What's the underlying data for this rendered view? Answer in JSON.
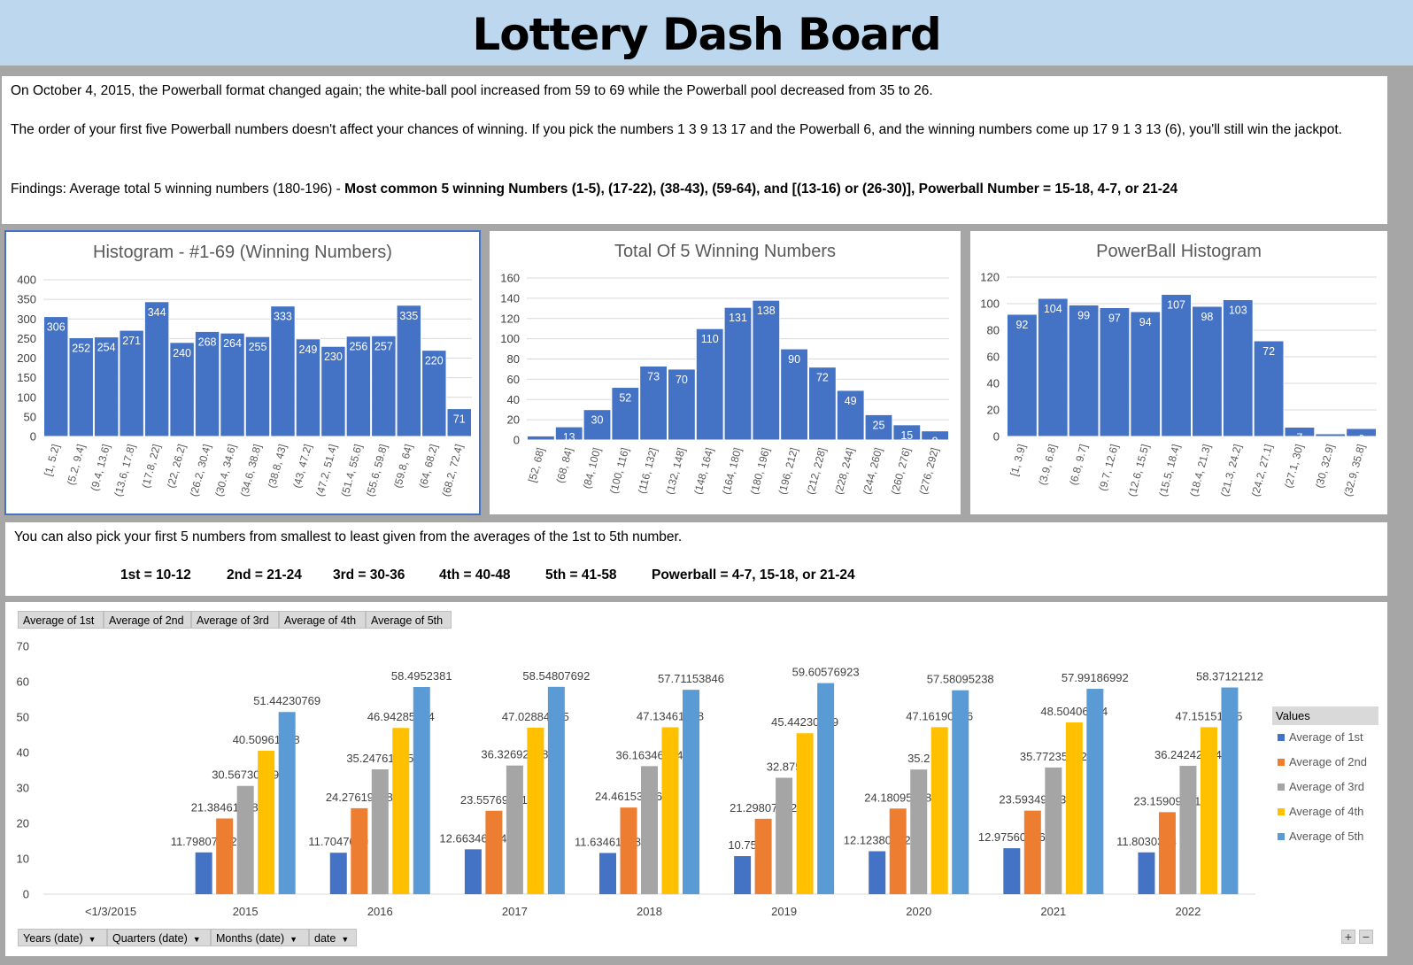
{
  "title": "Lottery Dash Board",
  "info": {
    "p1": "On October 4, 2015, the Powerball format changed again; the white-ball pool increased from 59 to 69 while the Powerball pool decreased from 35 to 26.",
    "p2": "The order of your first five Powerball numbers doesn't affect your chances of winning. If you pick the numbers 1 3 9 13 17 and the Powerball 6, and the winning numbers come up 17 9 1 3 13 (6), you'll still win the jackpot.",
    "p3_plain": "Findings: Average total 5 winning numbers (180-196) - ",
    "p3_bold": "Most common 5 winning Numbers (1-5), (17-22), (38-43), (59-64), and [(13-16) or (26-30)], Powerball Number = 15-18, 4-7, or 21-24"
  },
  "picks": {
    "intro": "You can also pick your first 5 numbers from smallest to least given from the averages of the 1st to 5th number.",
    "items": [
      "1st = 10-12",
      "2nd = 21-24",
      "3rd = 30-36",
      "4th = 40-48",
      "5th = 41-58",
      "Powerball = 4-7, 15-18, or 21-24"
    ]
  },
  "pivot": {
    "field_buttons": [
      "Average of 1st",
      "Average of 2nd",
      "Average of 3rd",
      "Average of 4th",
      "Average of 5th"
    ],
    "axis_buttons": [
      "Years (date)",
      "Quarters (date)",
      "Months (date)",
      "date"
    ],
    "legend_title": "Values",
    "zoom_in": "+",
    "zoom_out": "−"
  },
  "colors": {
    "bar": "#4472c4",
    "series": [
      "#4472c4",
      "#ed7d31",
      "#a5a5a5",
      "#ffc000",
      "#5b9bd5"
    ]
  },
  "chart_data": [
    {
      "type": "bar",
      "title": "Histogram - #1-69 (Winning Numbers)",
      "categories": [
        "[1, 5.2]",
        "(5.2, 9.4]",
        "(9.4, 13.6]",
        "(13.6, 17.8]",
        "(17.8, 22]",
        "(22, 26.2]",
        "(26.2, 30.4]",
        "(30.4, 34.6]",
        "(34.6, 38.8]",
        "(38.8, 43]",
        "(43, 47.2]",
        "(47.2, 51.4]",
        "(51.4, 55.6]",
        "(55.6, 59.8]",
        "(59.8, 64]",
        "(64, 68.2]",
        "(68.2, 72.4]"
      ],
      "values": [
        306,
        252,
        254,
        271,
        344,
        240,
        268,
        264,
        255,
        333,
        249,
        230,
        256,
        257,
        335,
        220,
        71
      ],
      "ylim": [
        0,
        400
      ],
      "yticks": [
        0,
        50,
        100,
        150,
        200,
        250,
        300,
        350,
        400
      ],
      "grid": true
    },
    {
      "type": "bar",
      "title": "Total Of 5 Winning Numbers",
      "categories": [
        "[52, 68]",
        "(68, 84]",
        "(84, 100]",
        "(100, 116]",
        "(116, 132]",
        "(132, 148]",
        "(148, 164]",
        "(164, 180]",
        "(180, 196]",
        "(196, 212]",
        "(212, 228]",
        "(228, 244]",
        "(244, 260]",
        "(260, 276]",
        "(276, 292]"
      ],
      "values": [
        4,
        13,
        30,
        52,
        73,
        70,
        110,
        131,
        138,
        90,
        72,
        49,
        25,
        15,
        9
      ],
      "ylim": [
        0,
        160
      ],
      "yticks": [
        0,
        20,
        40,
        60,
        80,
        100,
        120,
        140,
        160
      ],
      "grid": true
    },
    {
      "type": "bar",
      "title": "PowerBall Histogram",
      "categories": [
        "[1, 3.9]",
        "(3.9, 6.8]",
        "(6.8, 9.7]",
        "(9.7, 12.6]",
        "(12.6, 15.5]",
        "(15.5, 18.4]",
        "(18.4, 21.3]",
        "(21.3, 24.2]",
        "(24.2, 27.1]",
        "(27.1, 30]",
        "(30, 32.9]",
        "(32.9, 35.8]"
      ],
      "values": [
        92,
        104,
        99,
        97,
        94,
        107,
        98,
        103,
        72,
        7,
        2,
        6
      ],
      "ylim": [
        0,
        120
      ],
      "yticks": [
        0,
        20,
        40,
        60,
        80,
        100,
        120
      ],
      "grid": true
    },
    {
      "type": "bar",
      "categories": [
        "<1/3/2015",
        "2015",
        "2016",
        "2017",
        "2018",
        "2019",
        "2020",
        "2021",
        "2022"
      ],
      "series": [
        {
          "name": "Average of 1st",
          "values": [
            null,
            11.79807692,
            11.7047619,
            12.66346154,
            11.63461538,
            10.75,
            12.12380952,
            12.97560976,
            11.8030303
          ]
        },
        {
          "name": "Average of 2nd",
          "values": [
            null,
            21.38461538,
            24.27619048,
            23.55769231,
            24.46153846,
            21.29807692,
            24.18095238,
            23.59349593,
            23.15909091
          ]
        },
        {
          "name": "Average of 3rd",
          "values": [
            null,
            30.56730769,
            35.24761905,
            36.32692308,
            36.16346154,
            32.875,
            35.2,
            35.77235772,
            36.24242424
          ]
        },
        {
          "name": "Average of 4th",
          "values": [
            null,
            40.50961538,
            46.94285714,
            47.02884615,
            47.13461538,
            45.44230769,
            47.16190476,
            48.50406504,
            47.15151515
          ]
        },
        {
          "name": "Average of 5th",
          "values": [
            null,
            51.44230769,
            58.4952381,
            58.54807692,
            57.71153846,
            59.60576923,
            57.58095238,
            57.99186992,
            58.37121212
          ]
        }
      ],
      "ylim": [
        0,
        70
      ],
      "yticks": [
        0,
        10,
        20,
        30,
        40,
        50,
        60,
        70
      ],
      "grid": false,
      "legend": "right"
    }
  ]
}
